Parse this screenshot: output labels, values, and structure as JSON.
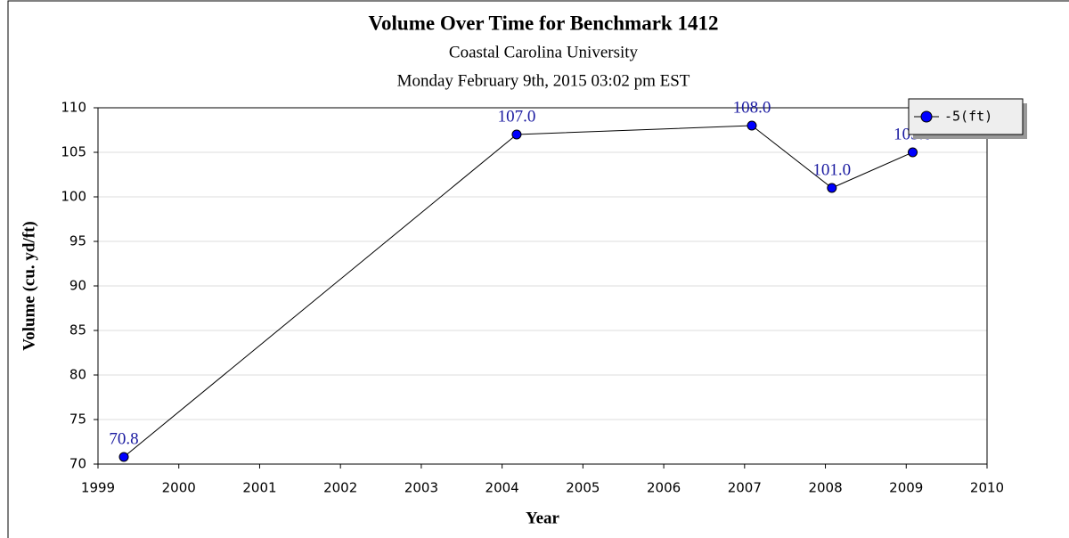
{
  "chart_data": {
    "type": "line",
    "title": "Volume Over Time for Benchmark 1412",
    "subtitle": "Coastal Carolina University",
    "subtitle2": "Monday February 9th, 2015 03:02 pm EST",
    "x_label": "Year",
    "y_label": "Volume (cu. yd/ft)",
    "series": [
      {
        "name": "-5(ft)",
        "color": "#0000ff",
        "x": [
          1999.32,
          2004.18,
          2007.09,
          2008.08,
          2009.08
        ],
        "values": [
          70.8,
          107,
          108,
          101,
          105
        ],
        "value_labels": [
          "70.8",
          "107.0",
          "108.0",
          "101.0",
          "105.0"
        ]
      }
    ],
    "xlim": [
      1999,
      2010
    ],
    "xticks": [
      1999,
      2000,
      2001,
      2002,
      2003,
      2004,
      2005,
      2006,
      2007,
      2008,
      2009,
      2010
    ],
    "ylim": [
      70,
      110
    ],
    "yticks": [
      70,
      75,
      80,
      85,
      90,
      95,
      100,
      105,
      110
    ],
    "grid": true,
    "legend": "top-right"
  }
}
